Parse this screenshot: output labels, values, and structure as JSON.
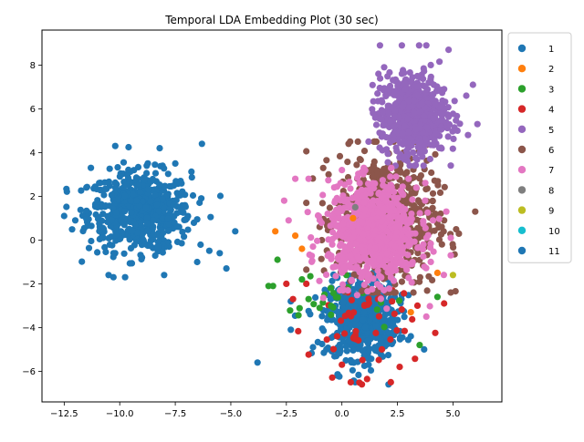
{
  "chart_data": {
    "type": "scatter",
    "title": "Temporal LDA Embedding Plot (30 sec)",
    "xlabel": "",
    "ylabel": "",
    "xlim": [
      -13.5,
      7.2
    ],
    "ylim": [
      -7.4,
      9.6
    ],
    "xticks": [
      -12.5,
      -10.0,
      -7.5,
      -5.0,
      -2.5,
      0.0,
      2.5,
      5.0
    ],
    "xtick_labels": [
      "−12.5",
      "−10.0",
      "−7.5",
      "−5.0",
      "−2.5",
      "0.0",
      "2.5",
      "5.0"
    ],
    "yticks": [
      -6,
      -4,
      -2,
      0,
      2,
      4,
      6,
      8
    ],
    "ytick_labels": [
      "−6",
      "−4",
      "−2",
      "0",
      "2",
      "4",
      "6",
      "8"
    ],
    "grid": false,
    "legend_position": "outside-right-top",
    "series": [
      {
        "name": "1",
        "color": "#1f77b4",
        "points": [
          [
            -12.5,
            1.1
          ],
          [
            -12.0,
            0.9
          ],
          [
            -11.5,
            2.4
          ],
          [
            -11.3,
            3.3
          ],
          [
            -11.0,
            1.5
          ],
          [
            -10.5,
            -1.6
          ],
          [
            -10.2,
            4.3
          ],
          [
            -9.5,
            1.8
          ],
          [
            -9.0,
            -0.8
          ],
          [
            -8.5,
            0.9
          ],
          [
            -8.2,
            4.2
          ],
          [
            -8.0,
            -1.6
          ],
          [
            -7.5,
            3.5
          ],
          [
            -6.3,
            4.4
          ],
          [
            -5.5,
            -0.6
          ],
          [
            -5.2,
            -1.3
          ],
          [
            -4.8,
            0.4
          ],
          [
            -3.8,
            -5.6
          ]
        ]
      },
      {
        "name": "2",
        "color": "#ff7f0e",
        "points": [
          [
            -3.0,
            0.4
          ],
          [
            -2.1,
            0.2
          ],
          [
            -1.8,
            -0.4
          ],
          [
            0.5,
            1.0
          ],
          [
            3.1,
            -3.3
          ],
          [
            4.3,
            -1.5
          ]
        ]
      },
      {
        "name": "3",
        "color": "#2ca02c",
        "points": [
          [
            -3.3,
            -2.1
          ],
          [
            -3.1,
            -2.1
          ],
          [
            -2.9,
            -0.9
          ],
          [
            -1.8,
            -1.8
          ],
          [
            -1.5,
            -2.7
          ],
          [
            -1.0,
            -3.1
          ],
          [
            -0.5,
            -2.2
          ],
          [
            0.2,
            -1.6
          ],
          [
            3.5,
            -4.8
          ],
          [
            4.3,
            -2.6
          ]
        ]
      },
      {
        "name": "4",
        "color": "#d62728",
        "points": [
          [
            -2.5,
            -2.0
          ],
          [
            -2.2,
            -2.7
          ],
          [
            -1.6,
            -2.0
          ],
          [
            0.0,
            -5.7
          ],
          [
            0.4,
            -6.5
          ],
          [
            0.9,
            -6.6
          ],
          [
            1.8,
            -5.0
          ],
          [
            2.2,
            -6.5
          ],
          [
            2.6,
            -5.8
          ],
          [
            3.4,
            -3.0
          ],
          [
            4.6,
            -2.9
          ]
        ]
      },
      {
        "name": "5",
        "color": "#9467bd",
        "points": [
          [
            1.4,
            5.8
          ],
          [
            1.6,
            6.7
          ],
          [
            1.9,
            7.9
          ],
          [
            2.0,
            4.7
          ],
          [
            2.5,
            7.2
          ],
          [
            2.7,
            8.9
          ],
          [
            2.8,
            3.8
          ],
          [
            3.2,
            4.0
          ],
          [
            3.8,
            8.9
          ],
          [
            4.0,
            8.0
          ],
          [
            4.6,
            6.9
          ],
          [
            4.8,
            8.7
          ],
          [
            5.2,
            5.0
          ],
          [
            5.6,
            6.6
          ],
          [
            5.9,
            7.1
          ],
          [
            6.1,
            5.3
          ]
        ]
      },
      {
        "name": "6",
        "color": "#8c564b",
        "points": [
          [
            -1.6,
            1.7
          ],
          [
            -1.0,
            0.6
          ],
          [
            -0.6,
            3.0
          ],
          [
            0.3,
            4.4
          ],
          [
            0.8,
            2.3
          ],
          [
            1.2,
            -0.9
          ],
          [
            1.8,
            1.3
          ],
          [
            2.5,
            3.2
          ],
          [
            3.3,
            4.5
          ],
          [
            4.2,
            1.2
          ],
          [
            4.5,
            -0.2
          ],
          [
            4.6,
            0.9
          ],
          [
            4.9,
            -2.4
          ],
          [
            6.0,
            1.3
          ]
        ]
      },
      {
        "name": "7",
        "color": "#e377c2",
        "points": [
          [
            -2.6,
            1.8
          ],
          [
            -2.4,
            0.9
          ],
          [
            -2.1,
            2.8
          ],
          [
            -1.5,
            2.8
          ],
          [
            -1.3,
            -0.3
          ],
          [
            -0.3,
            1.8
          ],
          [
            0.0,
            3.2
          ],
          [
            0.8,
            2.6
          ],
          [
            1.4,
            -1.1
          ],
          [
            2.0,
            1.8
          ],
          [
            2.4,
            -0.3
          ],
          [
            3.0,
            2.8
          ],
          [
            3.3,
            0.3
          ],
          [
            3.8,
            -3.5
          ],
          [
            4.0,
            -1.0
          ],
          [
            4.1,
            0.9
          ],
          [
            4.7,
            1.3
          ],
          [
            4.9,
            0.1
          ]
        ]
      },
      {
        "name": "8",
        "color": "#7f7f7f",
        "points": [
          [
            0.6,
            1.5
          ]
        ]
      },
      {
        "name": "9",
        "color": "#bcbd22",
        "points": [
          [
            5.0,
            -1.6
          ]
        ]
      },
      {
        "name": "10",
        "color": "#17becf",
        "points": []
      },
      {
        "name": "11",
        "color": "#1f77b4",
        "points": [
          [
            -2.3,
            -2.8
          ],
          [
            -2.3,
            -4.1
          ],
          [
            -1.3,
            -4.9
          ],
          [
            -0.7,
            -5.0
          ],
          [
            -0.5,
            -3.2
          ],
          [
            -0.2,
            -6.2
          ],
          [
            0.1,
            -1.5
          ],
          [
            0.3,
            -2.0
          ],
          [
            0.5,
            -4.5
          ],
          [
            0.6,
            -6.5
          ],
          [
            0.8,
            -1.8
          ],
          [
            1.0,
            -3.3
          ],
          [
            1.2,
            -5.7
          ],
          [
            1.5,
            -2.5
          ],
          [
            1.8,
            -4.2
          ],
          [
            2.1,
            -6.6
          ],
          [
            2.3,
            -3.8
          ],
          [
            2.7,
            -2.5
          ],
          [
            3.1,
            -4.4
          ],
          [
            3.7,
            -5.0
          ]
        ]
      }
    ],
    "clusters": [
      {
        "series": "1",
        "color": "#1f77b4",
        "n": 620,
        "cx": -9.1,
        "cy": 1.3,
        "sx": 1.15,
        "sy": 0.9,
        "xmin": -12.4,
        "xmax": -4.8,
        "ymin": -1.7,
        "ymax": 4.3
      },
      {
        "series": "11",
        "color": "#1f77b4",
        "n": 520,
        "cx": 0.9,
        "cy": -3.6,
        "sx": 0.8,
        "sy": 0.9,
        "xmin": -2.3,
        "xmax": 3.7,
        "ymin": -6.6,
        "ymax": -1.1
      },
      {
        "series": "4",
        "color": "#d62728",
        "n": 45,
        "cx": 0.9,
        "cy": -3.9,
        "sx": 1.2,
        "sy": 1.1,
        "xmin": -2.5,
        "xmax": 4.4,
        "ymin": -6.6,
        "ymax": -1.8
      },
      {
        "series": "3",
        "color": "#2ca02c",
        "n": 20,
        "cx": 0.0,
        "cy": -3.0,
        "sx": 1.3,
        "sy": 0.6,
        "xmin": -3.1,
        "xmax": 3.6,
        "ymin": -4.8,
        "ymax": -1.6
      },
      {
        "series": "6",
        "color": "#8c564b",
        "n": 700,
        "cx": 2.0,
        "cy": 0.9,
        "sx": 1.1,
        "sy": 1.5,
        "xmin": -1.6,
        "xmax": 6.0,
        "ymin": -2.4,
        "ymax": 4.5
      },
      {
        "series": "5",
        "color": "#9467bd",
        "n": 650,
        "cx": 3.2,
        "cy": 5.7,
        "sx": 0.75,
        "sy": 0.9,
        "xmin": 1.2,
        "xmax": 6.1,
        "ymin": 3.4,
        "ymax": 8.9
      },
      {
        "series": "7",
        "color": "#e377c2",
        "n": 800,
        "cx": 1.4,
        "cy": 0.3,
        "sx": 1.0,
        "sy": 1.1,
        "xmin": -2.6,
        "xmax": 4.9,
        "ymin": -3.6,
        "ymax": 3.3
      }
    ],
    "draw_order": [
      "1",
      "11",
      "4",
      "3",
      "6",
      "5",
      "7",
      "2",
      "8",
      "9",
      "10"
    ]
  }
}
